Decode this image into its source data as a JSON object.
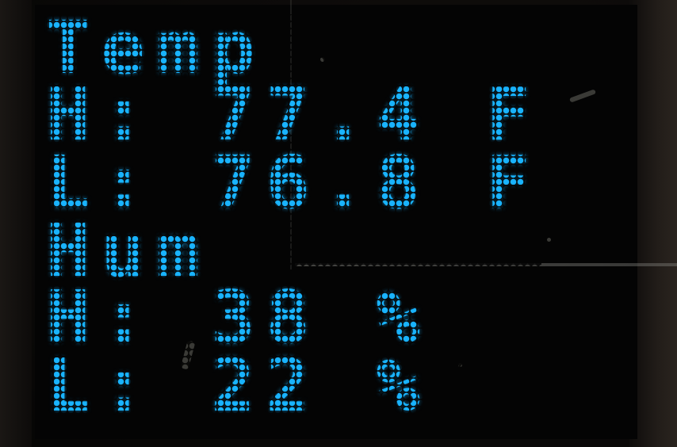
{
  "display": {
    "temp_label": "Temp",
    "temp_high": "H: 77.4 F",
    "temp_low": "L: 76.8 F",
    "hum_label": "Hum",
    "hum_high": "H: 38 %",
    "hum_low": "L: 22 %"
  },
  "colors": {
    "text": "#19b3ff",
    "screen": "#040404"
  }
}
